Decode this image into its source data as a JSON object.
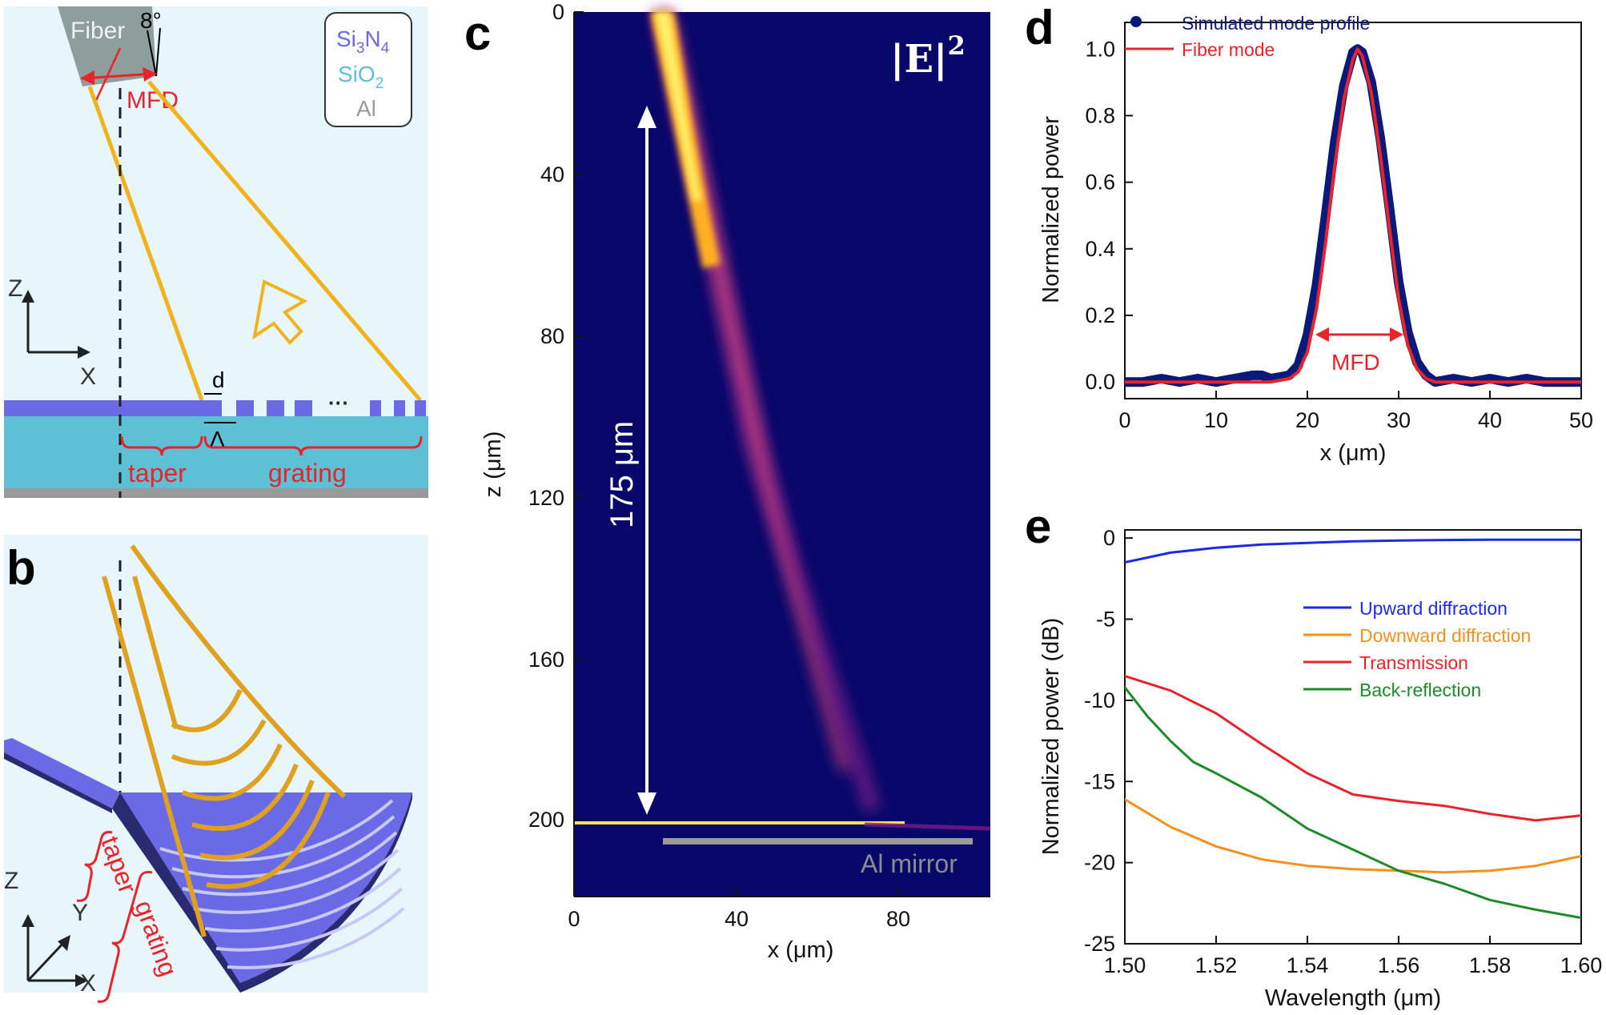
{
  "panel_labels": {
    "a": "a",
    "b": "b",
    "c": "c",
    "d": "d",
    "e": "e"
  },
  "colors": {
    "background_light": "#e6f6fb",
    "si3n4": "#6a6ae6",
    "sio2": "#5ec0d4",
    "al": "#9a9a9a",
    "beam": "#f2b21c",
    "annotation_red": "#e8232b",
    "field_bg": "#07086a",
    "mode_blue": "#0a1a7a"
  },
  "panel_a": {
    "fiber_label": "Fiber",
    "angle_label": "8°",
    "mfd_label": "MFD",
    "legend": {
      "si3n4": "Si",
      "si3n4_sub1": "3",
      "si3n4_mid": "N",
      "si3n4_sub2": "4",
      "sio2": "SiO",
      "sio2_sub": "2",
      "al": "Al"
    },
    "axis_z": "Z",
    "axis_x": "X",
    "d_label": "d",
    "period_label": "Λ",
    "ellipsis": "···",
    "taper_label": "taper",
    "grating_label": "grating"
  },
  "panel_b": {
    "axis_z": "Z",
    "axis_y": "Y",
    "axis_x": "X",
    "taper_label": "taper",
    "grating_label": "grating"
  },
  "panel_c": {
    "field_label": "|E|",
    "field_label_sup": "2",
    "arrow_label": "175 μm",
    "mirror_label": "Al mirror",
    "ylabel": "z (μm)",
    "xlabel": "x (μm)",
    "yticks": [
      "0",
      "40",
      "80",
      "120",
      "160",
      "200"
    ],
    "xticks": [
      "0",
      "40",
      "80"
    ]
  },
  "chart_data": [
    {
      "panel": "d",
      "type": "line",
      "title": "",
      "xlabel": "x (μm)",
      "ylabel": "Normalized power",
      "xlim": [
        0,
        50
      ],
      "ylim": [
        -0.05,
        1.08
      ],
      "xticks": [
        "0",
        "10",
        "20",
        "30",
        "40",
        "50"
      ],
      "yticks": [
        "0.0",
        "0.2",
        "0.4",
        "0.6",
        "0.8",
        "1.0"
      ],
      "annotation": "MFD",
      "series": [
        {
          "name": "Simulated mode profile",
          "color": "#0a1a7a",
          "x": [
            0,
            2,
            4,
            6,
            8,
            10,
            12,
            14,
            15,
            16,
            18,
            19,
            20,
            21,
            22,
            23,
            24,
            25,
            25.5,
            26,
            27,
            28,
            29,
            30,
            31,
            32,
            33,
            34,
            36,
            38,
            40,
            42,
            44,
            46,
            48,
            50
          ],
          "values": [
            0.0,
            0.0,
            0.01,
            0.0,
            0.01,
            0.0,
            0.01,
            0.02,
            0.02,
            0.01,
            0.02,
            0.05,
            0.14,
            0.29,
            0.5,
            0.72,
            0.89,
            0.99,
            1.0,
            0.99,
            0.9,
            0.73,
            0.52,
            0.3,
            0.15,
            0.06,
            0.02,
            0.0,
            0.01,
            0.0,
            0.01,
            0.0,
            0.01,
            0.0,
            0.0,
            0.0
          ]
        },
        {
          "name": "Fiber mode",
          "color": "#e8232b",
          "x": [
            0,
            2,
            4,
            6,
            8,
            10,
            12,
            14,
            16,
            18,
            19,
            20,
            21,
            22,
            23,
            24,
            25,
            25.5,
            26,
            27,
            28,
            29,
            30,
            31,
            32,
            33,
            34,
            36,
            38,
            40,
            42,
            44,
            46,
            48,
            50
          ],
          "values": [
            0,
            0,
            0,
            0,
            0,
            0,
            0,
            0,
            0,
            0.01,
            0.03,
            0.09,
            0.22,
            0.42,
            0.65,
            0.85,
            0.97,
            1.0,
            0.98,
            0.87,
            0.68,
            0.46,
            0.25,
            0.11,
            0.04,
            0.01,
            0,
            0,
            0,
            0,
            0,
            0,
            0,
            0,
            0
          ]
        }
      ]
    },
    {
      "panel": "e",
      "type": "line",
      "title": "",
      "xlabel": "Wavelength (μm)",
      "ylabel": "Normalized power (dB)",
      "xlim": [
        1.5,
        1.6
      ],
      "ylim": [
        -25,
        0.5
      ],
      "xticks": [
        "1.50",
        "1.52",
        "1.54",
        "1.56",
        "1.58",
        "1.60"
      ],
      "yticks": [
        "0",
        "-5",
        "-10",
        "-15",
        "-20",
        "-25"
      ],
      "series": [
        {
          "name": "Upward diffraction",
          "color": "#1c2be8",
          "x": [
            1.5,
            1.505,
            1.51,
            1.52,
            1.53,
            1.54,
            1.55,
            1.56,
            1.57,
            1.58,
            1.59,
            1.6
          ],
          "values": [
            -1.5,
            -1.2,
            -0.9,
            -0.6,
            -0.4,
            -0.3,
            -0.2,
            -0.15,
            -0.12,
            -0.1,
            -0.1,
            -0.1
          ]
        },
        {
          "name": "Downward diffraction",
          "color": "#f5901c",
          "x": [
            1.5,
            1.51,
            1.52,
            1.53,
            1.54,
            1.55,
            1.56,
            1.57,
            1.58,
            1.59,
            1.6
          ],
          "values": [
            -16.1,
            -17.8,
            -19.0,
            -19.8,
            -20.2,
            -20.4,
            -20.5,
            -20.6,
            -20.5,
            -20.2,
            -19.6
          ]
        },
        {
          "name": "Transmission",
          "color": "#e8232b",
          "x": [
            1.5,
            1.51,
            1.52,
            1.53,
            1.54,
            1.55,
            1.56,
            1.57,
            1.58,
            1.59,
            1.6
          ],
          "values": [
            -8.5,
            -9.4,
            -10.8,
            -12.7,
            -14.5,
            -15.8,
            -16.2,
            -16.5,
            -17.0,
            -17.4,
            -17.1
          ]
        },
        {
          "name": "Back-reflection",
          "color": "#1e8a2a",
          "x": [
            1.5,
            1.505,
            1.51,
            1.515,
            1.52,
            1.53,
            1.54,
            1.55,
            1.56,
            1.57,
            1.58,
            1.59,
            1.6
          ],
          "values": [
            -9.2,
            -11.0,
            -12.5,
            -13.8,
            -14.5,
            -16.0,
            -17.9,
            -19.2,
            -20.5,
            -21.3,
            -22.3,
            -22.9,
            -23.4
          ]
        }
      ]
    }
  ]
}
